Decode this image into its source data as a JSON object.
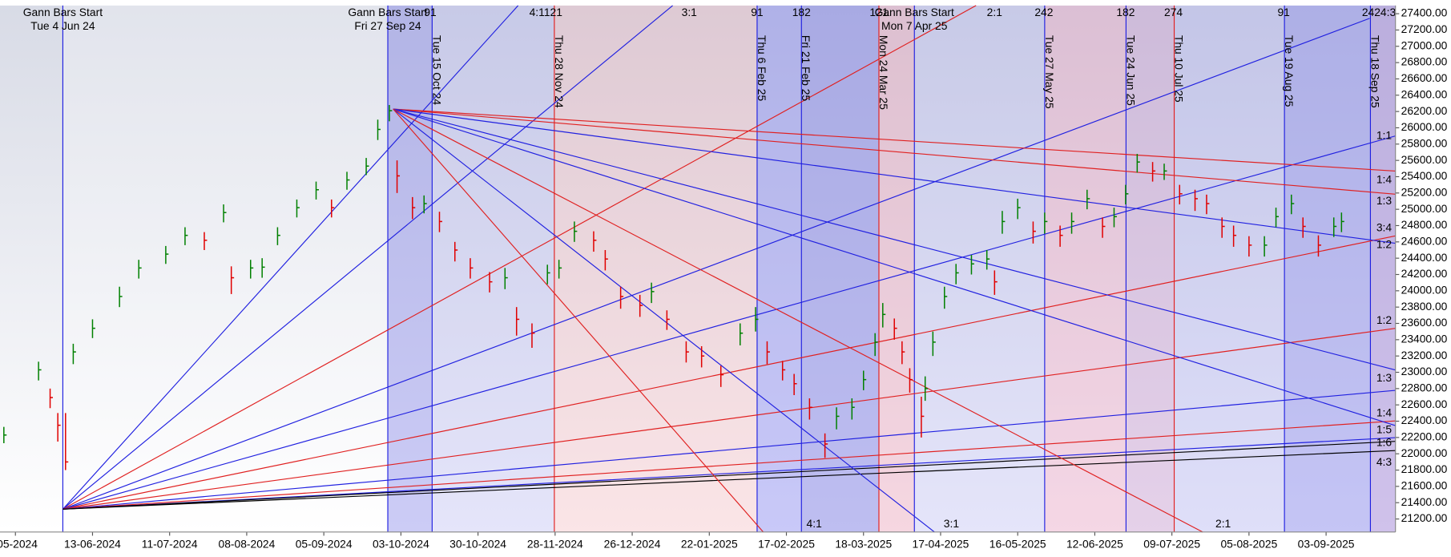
{
  "chart_data": {
    "type": "ohlc",
    "xlim": [
      -4,
      358
    ],
    "ylim": [
      21040,
      27500
    ],
    "xticks": [
      {
        "value": 0,
        "label": "-05-2024"
      },
      {
        "value": 20,
        "label": "13-06-2024"
      },
      {
        "value": 40,
        "label": "11-07-2024"
      },
      {
        "value": 60,
        "label": "08-08-2024"
      },
      {
        "value": 80,
        "label": "05-09-2024"
      },
      {
        "value": 100,
        "label": "03-10-2024"
      },
      {
        "value": 120,
        "label": "30-10-2024"
      },
      {
        "value": 140,
        "label": "28-11-2024"
      },
      {
        "value": 160,
        "label": "26-12-2024"
      },
      {
        "value": 180,
        "label": "22-01-2025"
      },
      {
        "value": 200,
        "label": "17-02-2025"
      },
      {
        "value": 220,
        "label": "18-03-2025"
      },
      {
        "value": 240,
        "label": "17-04-2025"
      },
      {
        "value": 260,
        "label": "16-05-2025"
      },
      {
        "value": 280,
        "label": "12-06-2025"
      },
      {
        "value": 300,
        "label": "09-07-2025"
      },
      {
        "value": 320,
        "label": "05-08-2025"
      },
      {
        "value": 340,
        "label": "03-09-2025"
      }
    ],
    "yticks": [
      {
        "value": 21200,
        "label": "21200.00"
      },
      {
        "value": 21400,
        "label": "21400.00"
      },
      {
        "value": 21600,
        "label": "21600.00"
      },
      {
        "value": 21800,
        "label": "21800.00"
      },
      {
        "value": 22000,
        "label": "22000.00"
      },
      {
        "value": 22200,
        "label": "22200.00"
      },
      {
        "value": 22400,
        "label": "22400.00"
      },
      {
        "value": 22600,
        "label": "22600.00"
      },
      {
        "value": 22800,
        "label": "22800.00"
      },
      {
        "value": 23000,
        "label": "23000.00"
      },
      {
        "value": 23200,
        "label": "23200.00"
      },
      {
        "value": 23400,
        "label": "23400.00"
      },
      {
        "value": 23600,
        "label": "23600.00"
      },
      {
        "value": 23800,
        "label": "23800.00"
      },
      {
        "value": 24000,
        "label": "24000.00"
      },
      {
        "value": 24200,
        "label": "24200.00"
      },
      {
        "value": 24400,
        "label": "24400.00"
      },
      {
        "value": 24600,
        "label": "24600.00"
      },
      {
        "value": 24800,
        "label": "24800.00"
      },
      {
        "value": 25000,
        "label": "25000.00"
      },
      {
        "value": 25200,
        "label": "25200.00"
      },
      {
        "value": 25400,
        "label": "25400.00"
      },
      {
        "value": 25600,
        "label": "25600.00"
      },
      {
        "value": 25800,
        "label": "25800.00"
      },
      {
        "value": 26000,
        "label": "26000.00"
      },
      {
        "value": 26200,
        "label": "26200.00"
      },
      {
        "value": 26400,
        "label": "26400.00"
      },
      {
        "value": 26600,
        "label": "26600.00"
      },
      {
        "value": 26800,
        "label": "26800.00"
      },
      {
        "value": 27000,
        "label": "27000.00"
      },
      {
        "value": 27200,
        "label": "27200.00"
      },
      {
        "value": 27400,
        "label": "27400.00"
      }
    ],
    "up_color": "#008000",
    "down_color": "#e00000",
    "x": [
      -3,
      6,
      9,
      11,
      13,
      15,
      20,
      27,
      32,
      39,
      44,
      49,
      54,
      56,
      61,
      64,
      68,
      73,
      78,
      82,
      86,
      91,
      94,
      97,
      99,
      103,
      106,
      110,
      114,
      118,
      123,
      127,
      130,
      134,
      138,
      141,
      145,
      150,
      153,
      157,
      162,
      165,
      169,
      174,
      178,
      183,
      188,
      192,
      195,
      199,
      202,
      206,
      210,
      213,
      217,
      220,
      223,
      225,
      228,
      230,
      232,
      235,
      236,
      238,
      241,
      244,
      248,
      252,
      254,
      256,
      260,
      264,
      267,
      271,
      274,
      278,
      282,
      285,
      288,
      291,
      295,
      298,
      302,
      306,
      309,
      313,
      316,
      320,
      324,
      327,
      331,
      334,
      338,
      342,
      344
    ],
    "close": [
      22230,
      23030,
      22690,
      22350,
      21900,
      23250,
      23540,
      23930,
      24280,
      24450,
      24680,
      24620,
      24960,
      24160,
      24280,
      24290,
      24680,
      25020,
      25240,
      25020,
      25360,
      25530,
      25980,
      26210,
      25410,
      25020,
      25070,
      24850,
      24500,
      24280,
      24110,
      24160,
      23650,
      23480,
      24220,
      24280,
      24730,
      24620,
      24390,
      23930,
      23820,
      23990,
      23650,
      23250,
      23200,
      22970,
      23480,
      23650,
      23250,
      23030,
      22860,
      22570,
      22120,
      22460,
      22570,
      22910,
      23370,
      23710,
      23540,
      23250,
      22910,
      22460,
      22800,
      23370,
      23930,
      24220,
      24330,
      24390,
      24110,
      24850,
      25020,
      24730,
      24850,
      24680,
      24850,
      25130,
      24790,
      24910,
      25190,
      25580,
      25470,
      25470,
      25190,
      25130,
      25070,
      24790,
      24680,
      24560,
      24560,
      24910,
      25070,
      24790,
      24560,
      24790,
      24850
    ],
    "high": [
      22330,
      23130,
      22800,
      22500,
      22500,
      23350,
      23650,
      24050,
      24380,
      24550,
      24780,
      24720,
      25060,
      24300,
      24380,
      24400,
      24780,
      25120,
      25340,
      25120,
      25460,
      25630,
      26100,
      26280,
      25600,
      25150,
      25170,
      24970,
      24600,
      24400,
      24230,
      24280,
      23800,
      23600,
      24320,
      24380,
      24850,
      24730,
      24500,
      24050,
      23950,
      24100,
      23760,
      23380,
      23320,
      23080,
      23600,
      23800,
      23380,
      23140,
      22980,
      22680,
      22250,
      22570,
      22680,
      23020,
      23480,
      23850,
      23660,
      23380,
      23050,
      22700,
      22950,
      23500,
      24050,
      24330,
      24440,
      24500,
      24250,
      24980,
      25130,
      24850,
      24960,
      24800,
      24960,
      25240,
      24900,
      25020,
      25300,
      25680,
      25580,
      25560,
      25300,
      25240,
      25180,
      24900,
      24800,
      24670,
      24670,
      25020,
      25180,
      24900,
      24680,
      24900,
      24960
    ],
    "low": [
      22130,
      22900,
      22560,
      22150,
      21800,
      23100,
      23420,
      23800,
      24150,
      24330,
      24560,
      24500,
      24840,
      23960,
      24150,
      24160,
      24560,
      24900,
      25120,
      24900,
      25240,
      25420,
      25850,
      26080,
      25200,
      24880,
      24950,
      24720,
      24360,
      24150,
      23980,
      24020,
      23450,
      23300,
      24080,
      24150,
      24600,
      24480,
      24250,
      23780,
      23680,
      23850,
      23520,
      23120,
      23060,
      22820,
      23330,
      23500,
      23100,
      22900,
      22720,
      22420,
      21950,
      22300,
      22420,
      22780,
      23200,
      23550,
      23400,
      23100,
      22750,
      22200,
      22650,
      23200,
      23780,
      24080,
      24200,
      24260,
      23950,
      24700,
      24880,
      24580,
      24700,
      24540,
      24700,
      25000,
      24650,
      24780,
      25060,
      25450,
      25340,
      25360,
      25060,
      24980,
      24940,
      24650,
      24540,
      24420,
      24420,
      24780,
      24940,
      24650,
      24420,
      24660,
      24720
    ],
    "fan_lines": [
      {
        "x": [
          12.3,
          130.4
        ],
        "y": [
          21320,
          27500
        ],
        "color": "#2020e0"
      },
      {
        "x": [
          12.3,
          170.5
        ],
        "y": [
          21320,
          27500
        ],
        "color": "#2020e0"
      },
      {
        "x": [
          12.3,
          249.2
        ],
        "y": [
          21320,
          27500
        ],
        "color": "#e02020"
      },
      {
        "x": [
          12.3,
          351.3
        ],
        "y": [
          21320,
          27343
        ],
        "color": "#2020e0"
      },
      {
        "x": [
          12.3,
          358
        ],
        "y": [
          21320,
          25900
        ],
        "color": "#2020e0"
      },
      {
        "x": [
          12.3,
          358
        ],
        "y": [
          21320,
          24674
        ],
        "color": "#e02020"
      },
      {
        "x": [
          12.3,
          358
        ],
        "y": [
          21320,
          23539
        ],
        "color": "#e02020"
      },
      {
        "x": [
          12.3,
          358
        ],
        "y": [
          21320,
          22778
        ],
        "color": "#2020e0"
      },
      {
        "x": [
          12.3,
          358
        ],
        "y": [
          21320,
          22403
        ],
        "color": "#e02020"
      },
      {
        "x": [
          12.3,
          358
        ],
        "y": [
          21320,
          22198
        ],
        "color": "#2020e0"
      },
      {
        "x": [
          12.3,
          358
        ],
        "y": [
          21320,
          22153
        ],
        "color": "#000000"
      },
      {
        "x": [
          12.3,
          358
        ],
        "y": [
          21320,
          22040
        ],
        "color": "#000000"
      },
      {
        "x": [
          98,
          358
        ],
        "y": [
          26230,
          25469
        ],
        "color": "#e02020"
      },
      {
        "x": [
          98,
          358
        ],
        "y": [
          26230,
          25185
        ],
        "color": "#e02020"
      },
      {
        "x": [
          98,
          358
        ],
        "y": [
          26230,
          24583
        ],
        "color": "#2020e0"
      },
      {
        "x": [
          98,
          358
        ],
        "y": [
          26230,
          23028
        ],
        "color": "#2020e0"
      },
      {
        "x": [
          98,
          358
        ],
        "y": [
          26230,
          22346
        ],
        "color": "#2020e0"
      },
      {
        "x": [
          98,
          308
        ],
        "y": [
          26230,
          21040
        ],
        "color": "#e02020"
      },
      {
        "x": [
          98,
          238.4
        ],
        "y": [
          26230,
          21040
        ],
        "color": "#2020e0"
      },
      {
        "x": [
          98,
          194
        ],
        "y": [
          26230,
          21040
        ],
        "color": "#e02020"
      }
    ],
    "verticals": [
      {
        "x": 12.3,
        "color": "#2020e0"
      },
      {
        "x": 96.6,
        "color": "#2020e0"
      },
      {
        "x": 108.1,
        "color": "#2020e0",
        "label": "Tue 15 Oct 24"
      },
      {
        "x": 139.8,
        "color": "#e02020",
        "label": "Thu 28 Nov 24"
      },
      {
        "x": 192.4,
        "color": "#2020e0",
        "label": "Thu 6 Feb 25"
      },
      {
        "x": 203.9,
        "color": "#2020e0",
        "label": "Fri 21 Feb 25"
      },
      {
        "x": 224,
        "color": "#e02020",
        "label": "Mon 24 Mar 25"
      },
      {
        "x": 233.2,
        "color": "#2020e0"
      },
      {
        "x": 267,
        "color": "#2020e0",
        "label": "Tue 27 May 25"
      },
      {
        "x": 288.1,
        "color": "#2020e0",
        "label": "Tue 24 Jun 25"
      },
      {
        "x": 300.6,
        "color": "#e02020",
        "label": "Thu 10 Jul 25"
      },
      {
        "x": 329.2,
        "color": "#2020e0",
        "label": "Tue 19 Aug 25"
      },
      {
        "x": 351.5,
        "color": "#2020e0",
        "label": "Thu 18 Sep 25"
      }
    ],
    "gann_starts": [
      {
        "x": 12.3,
        "title": "Gann Bars Start",
        "date": "Tue 4 Jun 24"
      },
      {
        "x": 96.6,
        "title": "Gann Bars Start",
        "date": "Fri 27 Sep 24"
      },
      {
        "x": 233.2,
        "title": "Gann Bars Start",
        "date": "Mon 7 Apr 25"
      }
    ],
    "top_labels": [
      {
        "x": 107.6,
        "text": "91"
      },
      {
        "x": 137.6,
        "text": "4:1121"
      },
      {
        "x": 174.8,
        "text": "3:1"
      },
      {
        "x": 192.4,
        "text": "91"
      },
      {
        "x": 203.9,
        "text": "182"
      },
      {
        "x": 224,
        "text": "121"
      },
      {
        "x": 254,
        "text": "2:1"
      },
      {
        "x": 266.8,
        "text": "242"
      },
      {
        "x": 288,
        "text": "182"
      },
      {
        "x": 300.4,
        "text": "274"
      },
      {
        "x": 329,
        "text": "91"
      },
      {
        "x": 353.7,
        "text": "2424:3"
      }
    ],
    "bottom_labels": [
      {
        "x": 207.2,
        "text": "4:1"
      },
      {
        "x": 242.8,
        "text": "3:1"
      },
      {
        "x": 313.3,
        "text": "2:1"
      }
    ],
    "right_labels": [
      {
        "y": 25900,
        "text": "1:1"
      },
      {
        "y": 25355,
        "text": "1:4"
      },
      {
        "y": 25095,
        "text": "1:3"
      },
      {
        "y": 24765,
        "text": "3:4"
      },
      {
        "y": 24560,
        "text": "1:2"
      },
      {
        "y": 23630,
        "text": "1:2"
      },
      {
        "y": 22925,
        "text": "1:3"
      },
      {
        "y": 22495,
        "text": "1:4"
      },
      {
        "y": 22290,
        "text": "1:5"
      },
      {
        "y": 22130,
        "text": "1:6"
      },
      {
        "y": 21890,
        "text": "4:3"
      }
    ]
  }
}
